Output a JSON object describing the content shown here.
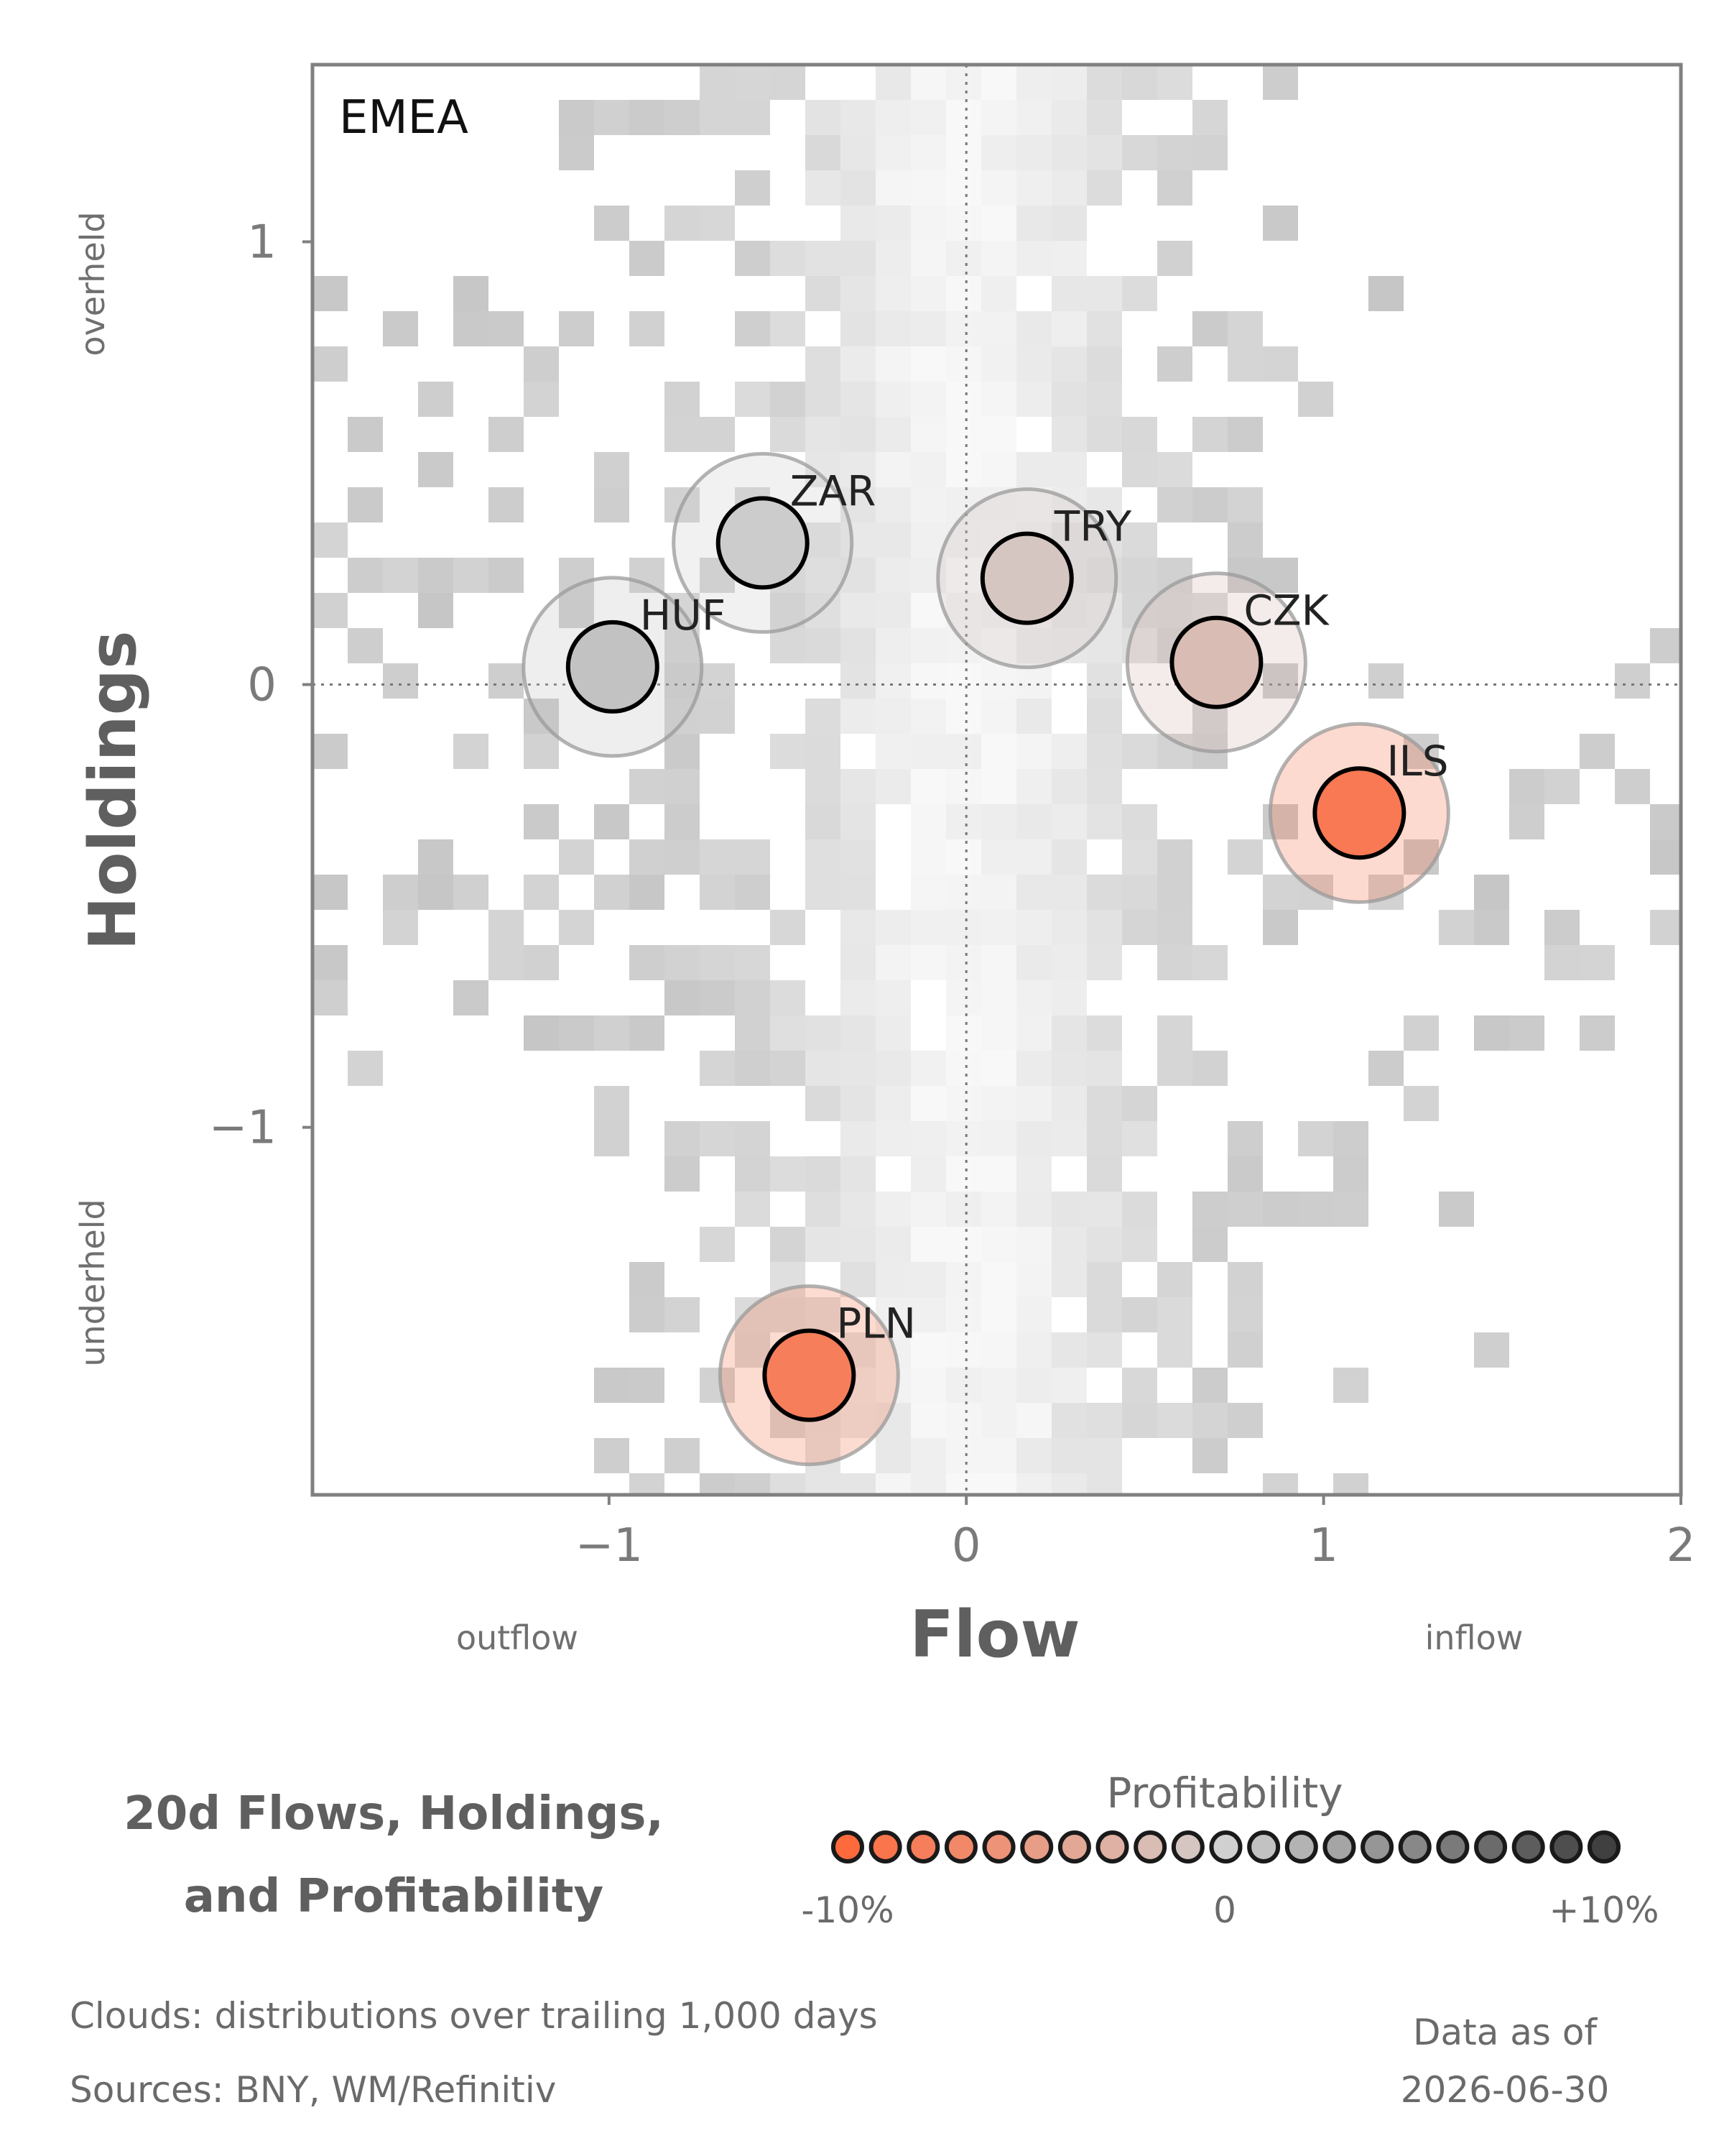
{
  "chart_data": {
    "type": "scatter",
    "panel_label": "EMEA",
    "xlabel": "Flow",
    "ylabel": "Holdings",
    "x_low_label": "outflow",
    "x_high_label": "inflow",
    "y_high_label": "overheld",
    "y_low_label": "underheld",
    "xlim": [
      -1.83,
      2.0
    ],
    "ylim": [
      -1.83,
      1.4
    ],
    "x_ticks": [
      -1,
      0,
      1,
      2
    ],
    "x_tick_labels": [
      "−1",
      "0",
      "1",
      "2"
    ],
    "y_ticks": [
      -1,
      0,
      1
    ],
    "y_tick_labels": [
      "−1",
      "0",
      "1"
    ],
    "reference_lines": {
      "x": 0,
      "y": 0,
      "style": "dotted"
    },
    "grid": false,
    "background": "density heatmap cloud (gray)",
    "points": [
      {
        "label": "ZAR",
        "x": -0.57,
        "y": 0.32,
        "profitability": 0.3
      },
      {
        "label": "HUF",
        "x": -0.99,
        "y": 0.04,
        "profitability": 1.0
      },
      {
        "label": "TRY",
        "x": 0.17,
        "y": 0.24,
        "profitability": -1.0
      },
      {
        "label": "CZK",
        "x": 0.7,
        "y": 0.05,
        "profitability": -2.0
      },
      {
        "label": "ILS",
        "x": 1.1,
        "y": -0.29,
        "profitability": -8.5
      },
      {
        "label": "PLN",
        "x": -0.44,
        "y": -1.56,
        "profitability": -8.0
      }
    ],
    "legend": {
      "title": "Profitability",
      "tick_labels": [
        "-10%",
        "0",
        "+10%"
      ],
      "placement": "bottom-right"
    },
    "colors": {
      "negative": "#ff6a3d",
      "neutral": "#d0d0d0",
      "positive": "#404040",
      "cloud": "#c8c8c8",
      "frame": "#808080"
    }
  },
  "title_lines": [
    "20d Flows, Holdings,",
    "and Profitability"
  ],
  "footer": {
    "clouds_note": "Clouds:  distributions over trailing 1,000 days",
    "sources": "Sources:  BNY, WM/Refinitiv",
    "data_as_of_label": "Data as of",
    "data_as_of_date": "2026-06-30"
  }
}
